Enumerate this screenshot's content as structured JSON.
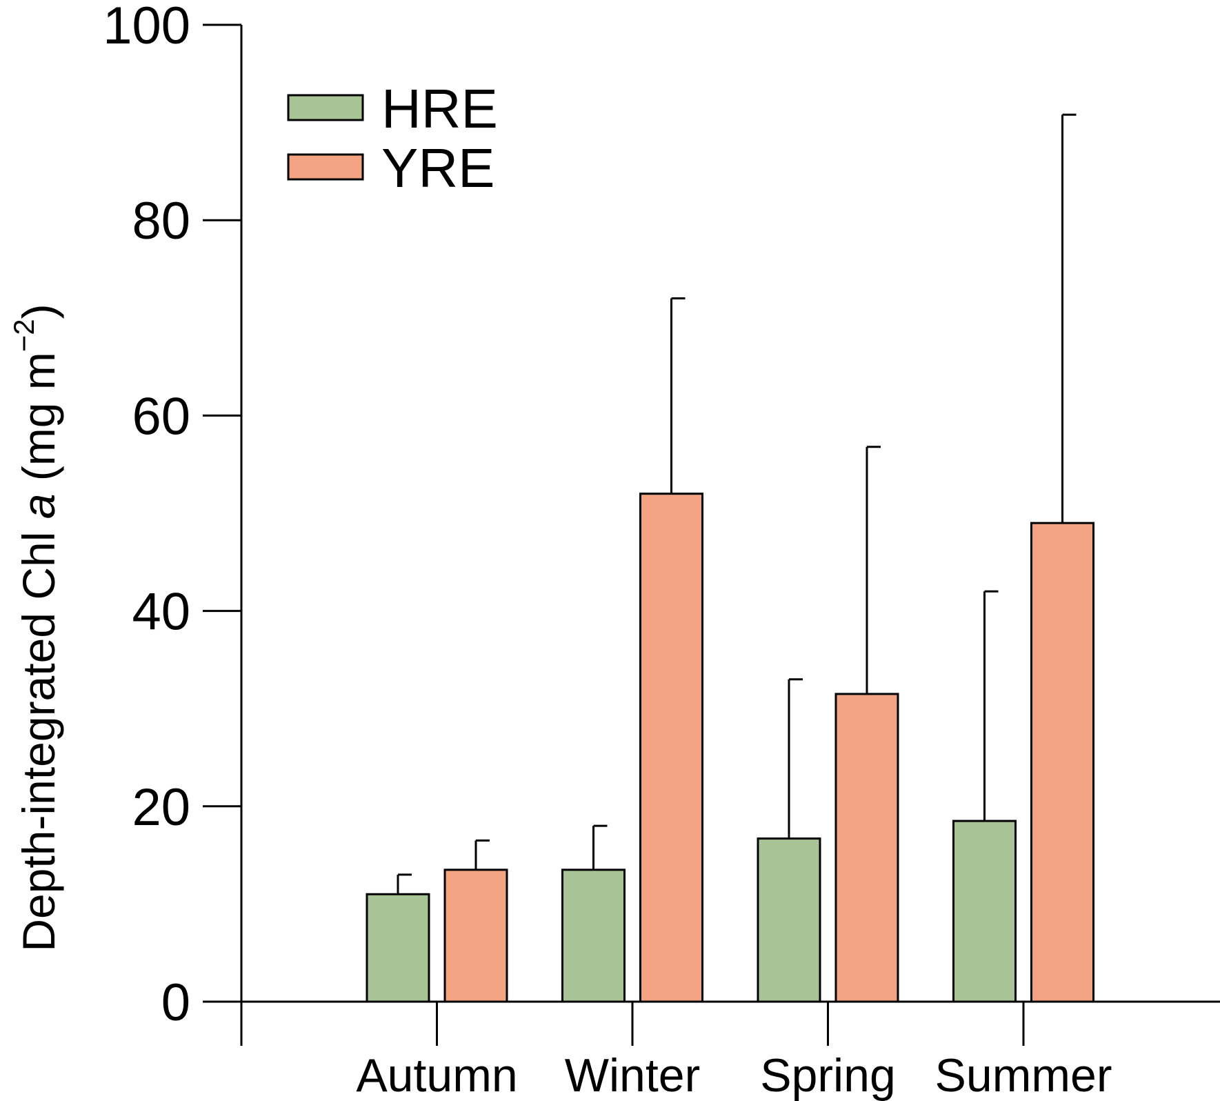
{
  "chart_data": {
    "type": "bar",
    "categories": [
      "Autumn",
      "Winter",
      "Spring",
      "Summer"
    ],
    "series": [
      {
        "name": "HRE",
        "color": "#a8c496",
        "values": [
          11.0,
          13.5,
          16.7,
          18.5
        ],
        "error_upper": [
          13.0,
          18.0,
          33.0,
          42.0
        ]
      },
      {
        "name": "YRE",
        "color": "#f3a381",
        "values": [
          13.5,
          52.0,
          31.5,
          49.0
        ],
        "error_upper": [
          16.5,
          72.0,
          56.8,
          90.8
        ]
      }
    ],
    "ylabel": {
      "prefix": "Depth-integrated Chl ",
      "italic": "a",
      "unit_prefix": " (mg m",
      "superscript": "−2",
      "unit_suffix": ")"
    },
    "xlabel": "",
    "ylim": [
      0,
      100
    ],
    "yticks": [
      "0",
      "20",
      "40",
      "60",
      "80",
      "100"
    ],
    "grid": false,
    "legend_placement": "top-left"
  }
}
